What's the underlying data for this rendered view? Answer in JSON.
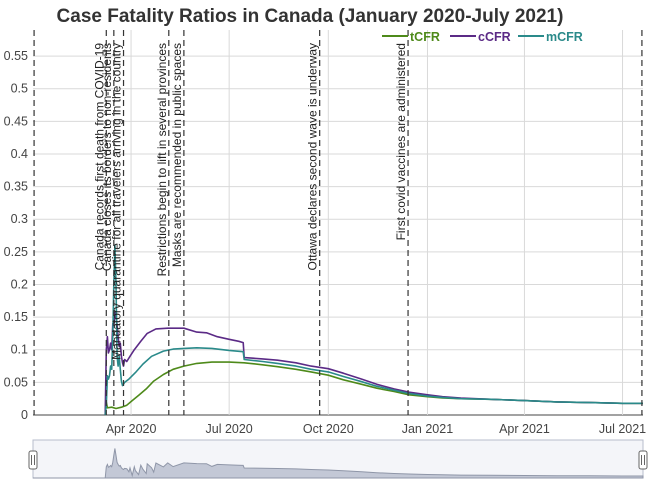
{
  "chart_data": {
    "type": "line",
    "title": "Case Fatality Ratios in Canada (January 2020-July 2021)",
    "xlabel": "",
    "ylabel": "",
    "xlim": [
      "2020-01-01",
      "2021-07-20"
    ],
    "ylim": [
      0,
      0.59
    ],
    "y_ticks": [
      0,
      0.05,
      0.1,
      0.15,
      0.2,
      0.25,
      0.3,
      0.35,
      0.4,
      0.45,
      0.5,
      0.55
    ],
    "x_ticks": [
      {
        "date": "2020-04-01",
        "label": "Apr 2020"
      },
      {
        "date": "2020-07-01",
        "label": "Jul 2020"
      },
      {
        "date": "2020-10-01",
        "label": "Oct 2020"
      },
      {
        "date": "2021-01-01",
        "label": "Jan 2021"
      },
      {
        "date": "2021-04-01",
        "label": "Apr 2021"
      },
      {
        "date": "2021-07-01",
        "label": "Jul 2021"
      }
    ],
    "grid": true,
    "legend_position": "top-right",
    "series": [
      {
        "name": "tCFR",
        "color": "#4e8a1a",
        "points": [
          [
            "2020-03-08",
            0.0
          ],
          [
            "2020-03-09",
            0.02
          ],
          [
            "2020-03-10",
            0.011
          ],
          [
            "2020-03-14",
            0.012
          ],
          [
            "2020-03-18",
            0.01
          ],
          [
            "2020-03-23",
            0.012
          ],
          [
            "2020-03-28",
            0.015
          ],
          [
            "2020-04-02",
            0.022
          ],
          [
            "2020-04-08",
            0.03
          ],
          [
            "2020-04-15",
            0.04
          ],
          [
            "2020-04-22",
            0.052
          ],
          [
            "2020-05-01",
            0.062
          ],
          [
            "2020-05-10",
            0.07
          ],
          [
            "2020-05-20",
            0.075
          ],
          [
            "2020-06-01",
            0.079
          ],
          [
            "2020-06-15",
            0.081
          ],
          [
            "2020-07-01",
            0.081
          ],
          [
            "2020-07-15",
            0.08
          ],
          [
            "2020-08-01",
            0.077
          ],
          [
            "2020-08-15",
            0.074
          ],
          [
            "2020-09-01",
            0.07
          ],
          [
            "2020-09-15",
            0.066
          ],
          [
            "2020-10-01",
            0.061
          ],
          [
            "2020-10-15",
            0.054
          ],
          [
            "2020-11-01",
            0.047
          ],
          [
            "2020-11-15",
            0.041
          ],
          [
            "2020-12-01",
            0.036
          ],
          [
            "2020-12-15",
            0.031
          ],
          [
            "2021-01-01",
            0.028
          ],
          [
            "2021-01-15",
            0.026
          ],
          [
            "2021-02-01",
            0.025
          ],
          [
            "2021-03-01",
            0.024
          ],
          [
            "2021-04-01",
            0.022
          ],
          [
            "2021-05-01",
            0.02
          ],
          [
            "2021-06-01",
            0.019
          ],
          [
            "2021-07-01",
            0.018
          ],
          [
            "2021-07-20",
            0.018
          ]
        ]
      },
      {
        "name": "cCFR",
        "color": "#5b2a86",
        "points": [
          [
            "2020-03-08",
            0.0
          ],
          [
            "2020-03-09",
            0.1
          ],
          [
            "2020-03-10",
            0.12
          ],
          [
            "2020-03-11",
            0.095
          ],
          [
            "2020-03-12",
            0.1
          ],
          [
            "2020-03-13",
            0.11
          ],
          [
            "2020-03-14",
            0.1
          ],
          [
            "2020-03-15",
            0.14
          ],
          [
            "2020-03-16",
            0.135
          ],
          [
            "2020-03-17",
            0.158
          ],
          [
            "2020-03-18",
            0.15
          ],
          [
            "2020-03-19",
            0.138
          ],
          [
            "2020-03-20",
            0.12
          ],
          [
            "2020-03-21",
            0.105
          ],
          [
            "2020-03-22",
            0.11
          ],
          [
            "2020-03-23",
            0.09
          ],
          [
            "2020-03-24",
            0.08
          ],
          [
            "2020-03-25",
            0.075
          ],
          [
            "2020-03-26",
            0.085
          ],
          [
            "2020-03-28",
            0.082
          ],
          [
            "2020-03-31",
            0.09
          ],
          [
            "2020-04-04",
            0.1
          ],
          [
            "2020-04-10",
            0.113
          ],
          [
            "2020-04-16",
            0.125
          ],
          [
            "2020-04-24",
            0.132
          ],
          [
            "2020-05-05",
            0.133
          ],
          [
            "2020-05-20",
            0.133
          ],
          [
            "2020-06-01",
            0.127
          ],
          [
            "2020-06-10",
            0.126
          ],
          [
            "2020-06-20",
            0.12
          ],
          [
            "2020-07-01",
            0.116
          ],
          [
            "2020-07-10",
            0.113
          ],
          [
            "2020-07-14",
            0.111
          ],
          [
            "2020-07-15",
            0.088
          ],
          [
            "2020-08-01",
            0.086
          ],
          [
            "2020-08-15",
            0.084
          ],
          [
            "2020-09-01",
            0.08
          ],
          [
            "2020-09-15",
            0.075
          ],
          [
            "2020-10-01",
            0.071
          ],
          [
            "2020-10-15",
            0.064
          ],
          [
            "2020-11-01",
            0.055
          ],
          [
            "2020-11-15",
            0.047
          ],
          [
            "2020-12-01",
            0.04
          ],
          [
            "2020-12-15",
            0.035
          ],
          [
            "2021-01-01",
            0.031
          ],
          [
            "2021-01-15",
            0.028
          ],
          [
            "2021-02-01",
            0.026
          ],
          [
            "2021-03-01",
            0.024
          ],
          [
            "2021-04-01",
            0.022
          ],
          [
            "2021-05-01",
            0.02
          ],
          [
            "2021-06-01",
            0.019
          ],
          [
            "2021-07-01",
            0.018
          ],
          [
            "2021-07-20",
            0.018
          ]
        ]
      },
      {
        "name": "mCFR",
        "color": "#2a8a8a",
        "points": [
          [
            "2020-03-08",
            0.0
          ],
          [
            "2020-03-09",
            0.015
          ],
          [
            "2020-03-10",
            0.06
          ],
          [
            "2020-03-11",
            0.055
          ],
          [
            "2020-03-12",
            0.06
          ],
          [
            "2020-03-13",
            0.075
          ],
          [
            "2020-03-14",
            0.07
          ],
          [
            "2020-03-15",
            0.12
          ],
          [
            "2020-03-16",
            0.2
          ],
          [
            "2020-03-17",
            0.26
          ],
          [
            "2020-03-18",
            0.2
          ],
          [
            "2020-03-19",
            0.09
          ],
          [
            "2020-03-20",
            0.075
          ],
          [
            "2020-03-21",
            0.09
          ],
          [
            "2020-03-22",
            0.07
          ],
          [
            "2020-03-23",
            0.052
          ],
          [
            "2020-03-24",
            0.045
          ],
          [
            "2020-03-26",
            0.05
          ],
          [
            "2020-03-30",
            0.055
          ],
          [
            "2020-04-05",
            0.065
          ],
          [
            "2020-04-12",
            0.078
          ],
          [
            "2020-04-20",
            0.09
          ],
          [
            "2020-05-01",
            0.098
          ],
          [
            "2020-05-10",
            0.101
          ],
          [
            "2020-05-20",
            0.102
          ],
          [
            "2020-06-01",
            0.103
          ],
          [
            "2020-06-15",
            0.102
          ],
          [
            "2020-07-01",
            0.099
          ],
          [
            "2020-07-14",
            0.097
          ],
          [
            "2020-07-15",
            0.085
          ],
          [
            "2020-08-01",
            0.082
          ],
          [
            "2020-08-15",
            0.079
          ],
          [
            "2020-09-01",
            0.075
          ],
          [
            "2020-09-15",
            0.07
          ],
          [
            "2020-10-01",
            0.066
          ],
          [
            "2020-10-15",
            0.059
          ],
          [
            "2020-11-01",
            0.051
          ],
          [
            "2020-11-15",
            0.044
          ],
          [
            "2020-12-01",
            0.038
          ],
          [
            "2020-12-15",
            0.033
          ],
          [
            "2021-01-01",
            0.029
          ],
          [
            "2021-01-15",
            0.027
          ],
          [
            "2021-02-01",
            0.025
          ],
          [
            "2021-03-01",
            0.024
          ],
          [
            "2021-04-01",
            0.022
          ],
          [
            "2021-05-01",
            0.02
          ],
          [
            "2021-06-01",
            0.019
          ],
          [
            "2021-07-01",
            0.018
          ],
          [
            "2021-07-20",
            0.018
          ]
        ]
      }
    ],
    "annotations": [
      {
        "date": "2020-01-02",
        "text": ""
      },
      {
        "date": "2020-03-09",
        "text": "Canada records first death from COVID-19"
      },
      {
        "date": "2020-03-16",
        "text": "Canada closes its borders to non-residents"
      },
      {
        "date": "2020-03-25",
        "text": "Mandatory quarantine for all travelers arriving in the country"
      },
      {
        "date": "2020-05-06",
        "text": "Restrictions begin to lift in several provinces"
      },
      {
        "date": "2020-05-20",
        "text": "Masks are recommended in public spaces"
      },
      {
        "date": "2020-09-23",
        "text": "Ottawa declares second wave is underway"
      },
      {
        "date": "2020-12-14",
        "text": "First covid vaccines are administered"
      },
      {
        "date": "2021-07-19",
        "text": ""
      }
    ]
  },
  "range_slider": {
    "handle_left": "||",
    "handle_right": "||"
  }
}
